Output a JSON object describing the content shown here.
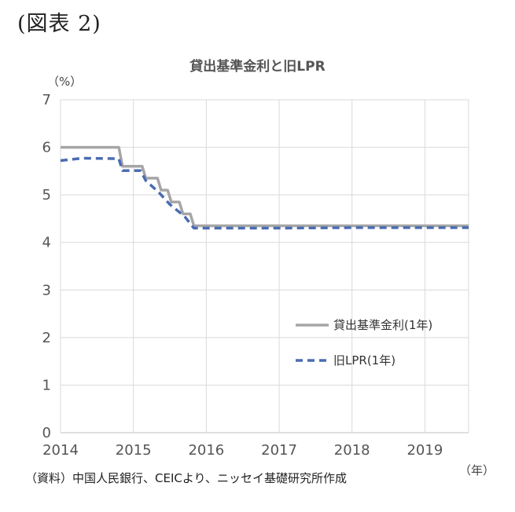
{
  "figure_label": "(図表 2)",
  "source_note": "（資料）中国人民銀行、CEICより、ニッセイ基礎研究所作成",
  "chart_data": {
    "type": "line",
    "title": "貸出基準金利と旧LPR",
    "ylabel": "（%）",
    "xlabel": "（年）",
    "ylim": [
      0,
      7
    ],
    "xlim": [
      2014,
      2019.6
    ],
    "yticks": [
      "0",
      "1",
      "2",
      "3",
      "4",
      "5",
      "6",
      "7"
    ],
    "xticks": [
      "2014",
      "2015",
      "2016",
      "2017",
      "2018",
      "2019"
    ],
    "grid": true,
    "legend_position": "center-right",
    "series": [
      {
        "name": "貸出基準金利(1年)",
        "color": "#a6a6a6",
        "style": "solid",
        "x": [
          2014.0,
          2014.8,
          2014.85,
          2015.12,
          2015.17,
          2015.33,
          2015.38,
          2015.47,
          2015.52,
          2015.63,
          2015.68,
          2015.78,
          2015.83,
          2019.6
        ],
        "y": [
          6.0,
          6.0,
          5.6,
          5.6,
          5.35,
          5.35,
          5.1,
          5.1,
          4.85,
          4.85,
          4.6,
          4.6,
          4.35,
          4.35
        ]
      },
      {
        "name": "旧LPR(1年)",
        "color": "#4a6cb3",
        "style": "dashed",
        "x": [
          2014.0,
          2014.3,
          2014.8,
          2014.85,
          2015.1,
          2015.17,
          2015.35,
          2015.5,
          2015.7,
          2015.83,
          2016.0,
          2017.0,
          2018.0,
          2019.0,
          2019.6
        ],
        "y": [
          5.72,
          5.77,
          5.76,
          5.51,
          5.51,
          5.3,
          5.05,
          4.8,
          4.55,
          4.3,
          4.3,
          4.3,
          4.31,
          4.31,
          4.31
        ]
      }
    ]
  }
}
